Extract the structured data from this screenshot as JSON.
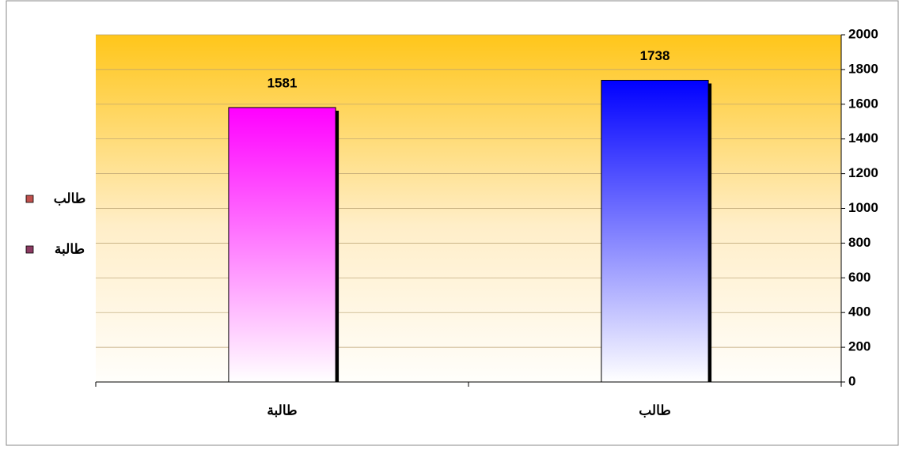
{
  "chart_data": {
    "type": "bar",
    "categories": [
      "طالبة",
      "طالب"
    ],
    "values": [
      1581,
      1738
    ],
    "colors": [
      "#ff00ff",
      "#0000ff"
    ],
    "legend_colors": [
      "#8b3a62",
      "#c0504d"
    ],
    "ylim": [
      0,
      2000
    ],
    "yticks": [
      0,
      200,
      400,
      600,
      800,
      1000,
      1200,
      1400,
      1600,
      1800,
      2000
    ],
    "grid": true,
    "legend": "left"
  }
}
